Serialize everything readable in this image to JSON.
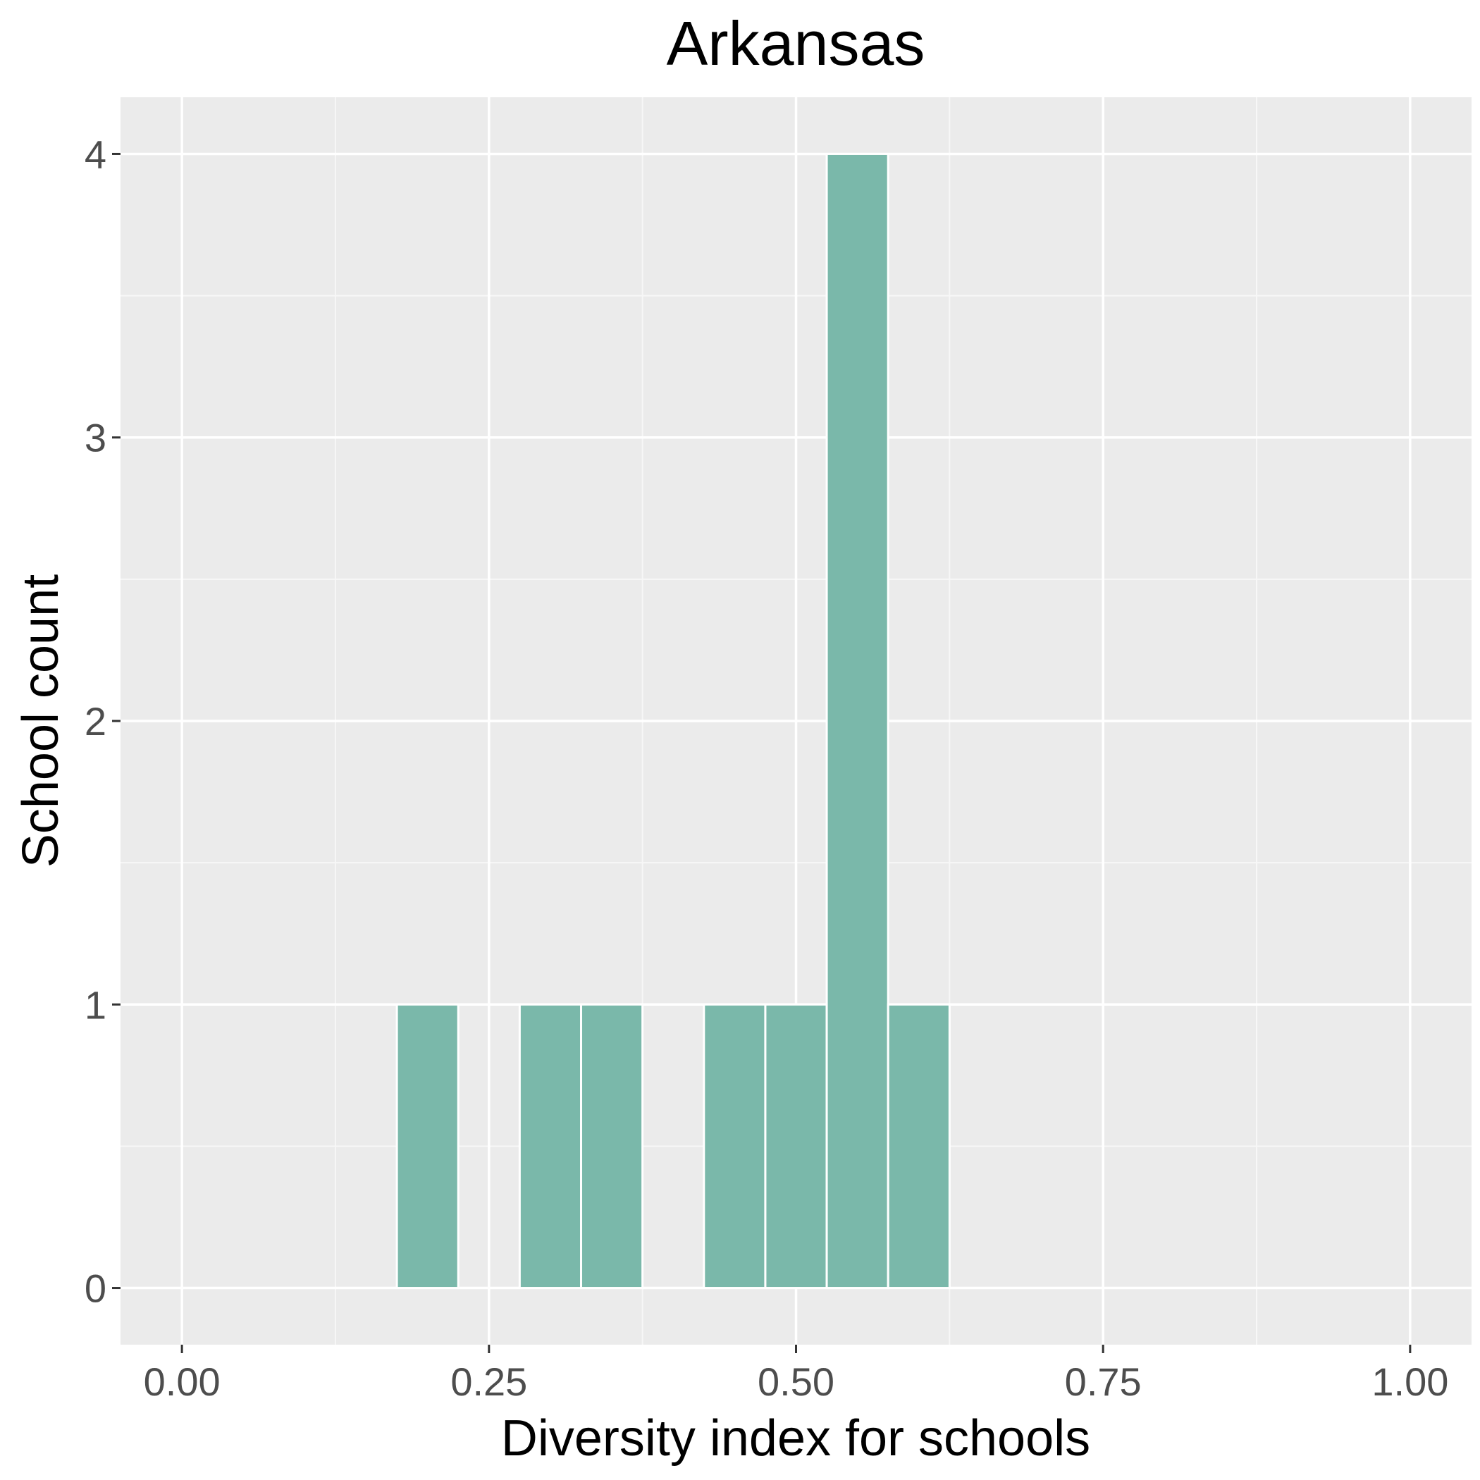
{
  "chart_data": {
    "type": "bar",
    "title": "Arkansas",
    "xlabel": "Diversity index for schools",
    "ylabel": "School count",
    "xlim": [
      -0.05,
      1.05
    ],
    "ylim": [
      -0.2,
      4.2
    ],
    "x_ticks": [
      {
        "value": 0,
        "label": "0.00"
      },
      {
        "value": 0.25,
        "label": "0.25"
      },
      {
        "value": 0.5,
        "label": "0.50"
      },
      {
        "value": 0.75,
        "label": "0.75"
      },
      {
        "value": 1,
        "label": "1.00"
      }
    ],
    "y_ticks": [
      {
        "value": 0,
        "label": "0"
      },
      {
        "value": 1,
        "label": "1"
      },
      {
        "value": 2,
        "label": "2"
      },
      {
        "value": 3,
        "label": "3"
      },
      {
        "value": 4,
        "label": "4"
      }
    ],
    "bin_width": 0.05,
    "bins": [
      {
        "x": 0.0,
        "count": 0
      },
      {
        "x": 0.05,
        "count": 0
      },
      {
        "x": 0.1,
        "count": 0
      },
      {
        "x": 0.15,
        "count": 0
      },
      {
        "x": 0.2,
        "count": 1
      },
      {
        "x": 0.25,
        "count": 0
      },
      {
        "x": 0.3,
        "count": 1
      },
      {
        "x": 0.35,
        "count": 1
      },
      {
        "x": 0.4,
        "count": 0
      },
      {
        "x": 0.45,
        "count": 1
      },
      {
        "x": 0.5,
        "count": 1
      },
      {
        "x": 0.55,
        "count": 4
      },
      {
        "x": 0.6,
        "count": 1
      },
      {
        "x": 0.65,
        "count": 0
      },
      {
        "x": 0.7,
        "count": 0
      },
      {
        "x": 0.75,
        "count": 0
      },
      {
        "x": 0.8,
        "count": 0
      },
      {
        "x": 0.85,
        "count": 0
      },
      {
        "x": 0.9,
        "count": 0
      },
      {
        "x": 0.95,
        "count": 0
      }
    ],
    "grid": true,
    "colors": {
      "bar_fill": "#7ab8aa",
      "bar_outline": "#ffffff",
      "panel_background": "#ebebeb",
      "grid_major": "#ffffff",
      "grid_minor": "#f7f7f7"
    }
  }
}
